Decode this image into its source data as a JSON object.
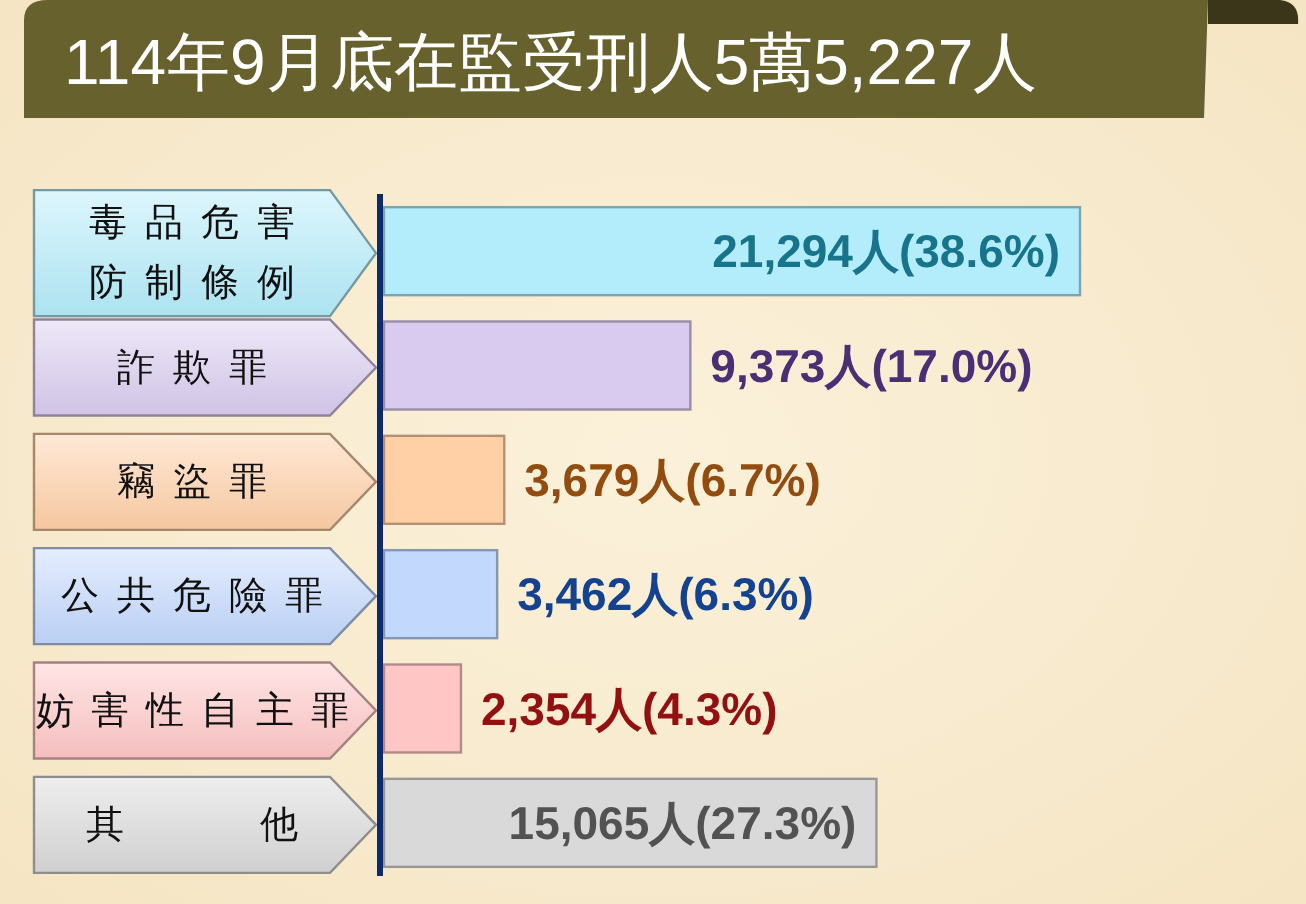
{
  "chart_data": {
    "type": "bar",
    "orientation": "horizontal",
    "title": "114年9月底在監受刑人5萬5,227人",
    "categories": [
      "毒品危害防制條例",
      "詐欺罪",
      "竊盜罪",
      "公共危險罪",
      "妨害性自主罪",
      "其他"
    ],
    "values": [
      21294,
      9373,
      3679,
      3462,
      2354,
      15065
    ],
    "colors": [
      "#b3ecfa",
      "#d9cbef",
      "#ffcfa6",
      "#c2d8fd",
      "#ffc6c6",
      "#d9d9d9"
    ],
    "value_labels": [
      "21,294人(38.6%)",
      "9,373人(17.0%)",
      "3,679人(6.7%)",
      "3,462人(6.3%)",
      "2,354人(4.3%)",
      "15,065人(27.3%)"
    ]
  }
}
